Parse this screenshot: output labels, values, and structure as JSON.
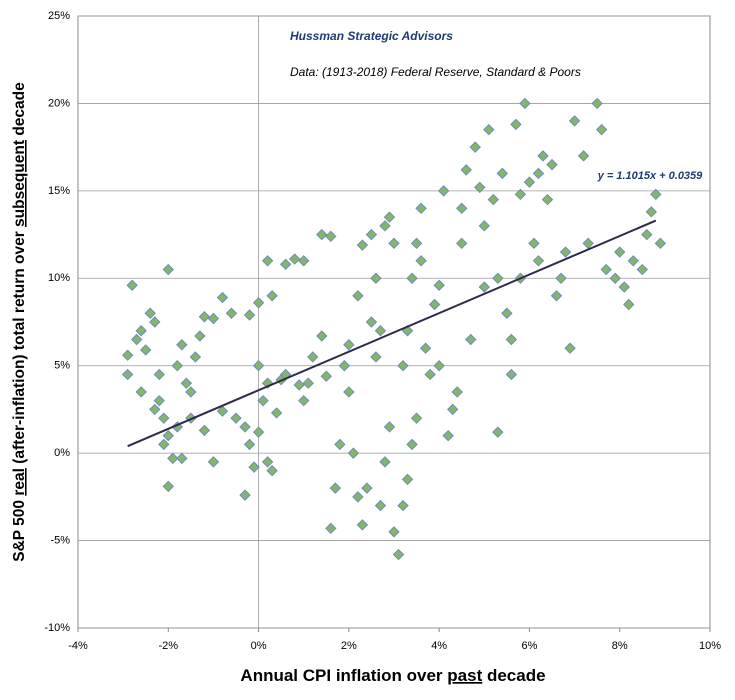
{
  "chart_data": {
    "type": "scatter",
    "title": "Hussman Strategic Advisors",
    "subtitle": "Data: (1913-2018)  Federal Reserve, Standard & Poors",
    "x_label_parts": [
      "Annual CPI inflation over ",
      "past",
      " decade"
    ],
    "y_label_parts": [
      "S&P 500 ",
      "real",
      " (after-inflation) total return over ",
      "subsequent",
      " decade"
    ],
    "xlim": [
      -4,
      10
    ],
    "ylim": [
      -10,
      25
    ],
    "xticks": [
      {
        "value": -4,
        "label": "-4%"
      },
      {
        "value": -2,
        "label": "-2%"
      },
      {
        "value": 0,
        "label": "0%"
      },
      {
        "value": 2,
        "label": "2%"
      },
      {
        "value": 4,
        "label": "4%"
      },
      {
        "value": 6,
        "label": "6%"
      },
      {
        "value": 8,
        "label": "8%"
      },
      {
        "value": 10,
        "label": "10%"
      }
    ],
    "yticks": [
      {
        "value": -10,
        "label": "-10%"
      },
      {
        "value": -5,
        "label": "-5%"
      },
      {
        "value": 0,
        "label": "0%"
      },
      {
        "value": 5,
        "label": "5%"
      },
      {
        "value": 10,
        "label": "10%"
      },
      {
        "value": 15,
        "label": "15%"
      },
      {
        "value": 20,
        "label": "20%"
      },
      {
        "value": 25,
        "label": "25%"
      }
    ],
    "grid": true,
    "color": "#86b46a",
    "x": [
      -2.8,
      -2.0,
      -2.9,
      -2.9,
      -2.7,
      -2.6,
      -2.5,
      -2.4,
      -2.3,
      -2.2,
      -2.1,
      -2.0,
      -1.9,
      -2.0,
      -1.8,
      -1.7,
      -1.6,
      -1.5,
      -1.4,
      -1.3,
      -1.2,
      -1.0,
      -0.8,
      -0.6,
      -0.2,
      0.0,
      0.3,
      0.2,
      0.6,
      0.8,
      1.0,
      -2.6,
      -2.3,
      -2.1,
      -1.8,
      -1.7,
      -1.5,
      -1.2,
      -0.8,
      -0.5,
      -0.3,
      -0.2,
      -0.1,
      -0.3,
      0.0,
      0.2,
      0.1,
      0.4,
      0.5,
      0.0,
      0.2,
      0.3,
      0.6,
      0.9,
      1.1,
      1.4,
      1.4,
      1.6,
      1.5,
      1.6,
      1.7,
      1.8,
      1.9,
      2.0,
      2.0,
      2.1,
      2.2,
      2.3,
      2.4,
      2.3,
      2.5,
      2.6,
      2.7,
      2.8,
      2.9,
      3.0,
      2.6,
      2.7,
      2.8,
      3.0,
      3.1,
      3.2,
      3.3,
      3.4,
      3.5,
      3.3,
      3.4,
      3.5,
      3.6,
      3.7,
      3.8,
      3.9,
      4.0,
      4.1,
      4.2,
      4.3,
      4.5,
      4.6,
      4.8,
      4.9,
      5.0,
      5.1,
      5.2,
      5.3,
      5.3,
      5.5,
      5.6,
      5.7,
      5.8,
      5.9,
      6.0,
      6.1,
      6.2,
      6.3,
      6.5,
      6.6,
      6.7,
      6.8,
      7.0,
      7.2,
      7.3,
      7.5,
      7.6,
      7.7,
      7.9,
      8.0,
      8.1,
      8.2,
      8.3,
      8.5,
      8.6,
      8.7,
      8.8,
      8.9,
      4.0,
      4.4,
      3.6,
      2.2,
      2.5,
      1.2,
      5.4,
      5.8,
      6.4,
      5.0,
      4.7,
      3.2,
      2.9,
      6.9,
      6.2,
      5.6,
      4.5,
      1.0,
      -1.0,
      -2.2
    ],
    "y": [
      9.6,
      10.5,
      4.5,
      5.6,
      6.5,
      7.0,
      5.9,
      8.0,
      7.5,
      3.0,
      2.0,
      1.0,
      -0.3,
      -1.9,
      5.0,
      6.2,
      4.0,
      3.5,
      5.5,
      6.7,
      7.8,
      7.7,
      8.9,
      8.0,
      7.9,
      8.6,
      9.0,
      11.0,
      10.8,
      11.1,
      11.0,
      3.5,
      2.5,
      0.5,
      1.5,
      -0.3,
      2.0,
      1.3,
      2.4,
      2.0,
      1.5,
      0.5,
      -0.8,
      -2.4,
      1.2,
      4.0,
      3.0,
      2.3,
      4.2,
      5.0,
      -0.5,
      -1.0,
      4.5,
      3.9,
      4.0,
      6.7,
      12.5,
      12.4,
      4.4,
      -4.3,
      -2.0,
      0.5,
      5.0,
      6.2,
      3.5,
      0.0,
      -2.5,
      -4.1,
      -2.0,
      11.9,
      12.5,
      10.0,
      7.0,
      13.0,
      13.5,
      12.0,
      5.5,
      -3.0,
      -0.5,
      -4.5,
      -5.8,
      -3.0,
      -1.5,
      0.5,
      2.0,
      7.0,
      10.0,
      12.0,
      14.0,
      6.0,
      4.5,
      8.5,
      9.6,
      15.0,
      1.0,
      2.5,
      12.0,
      16.2,
      17.5,
      15.2,
      13.0,
      18.5,
      14.5,
      1.2,
      10.0,
      8.0,
      4.5,
      18.8,
      14.8,
      20.0,
      15.5,
      12.0,
      11.0,
      17.0,
      16.5,
      9.0,
      10.0,
      11.5,
      19.0,
      17.0,
      12.0,
      20.0,
      18.5,
      10.5,
      10.0,
      11.5,
      9.5,
      8.5,
      11.0,
      10.5,
      12.5,
      13.8,
      14.8,
      12.0,
      5.0,
      3.5,
      11.0,
      9.0,
      7.5,
      5.5,
      16.0,
      10.0,
      14.5,
      9.5,
      6.5,
      5.0,
      1.5,
      6.0,
      16.0,
      6.5,
      14.0,
      3.0,
      -0.5,
      4.5
    ],
    "trendline": {
      "label": "y = 1.1015x + 0.0359",
      "color": "#2e2a4a",
      "x": [
        -2.9,
        8.8
      ],
      "y": [
        0.4,
        13.3
      ]
    }
  }
}
